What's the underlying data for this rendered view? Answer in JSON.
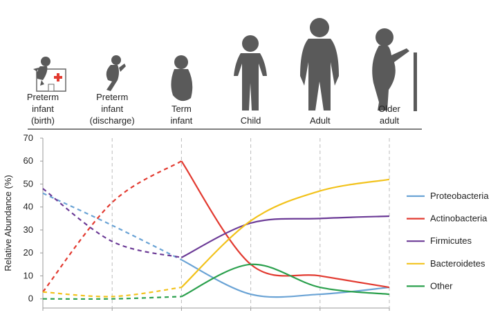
{
  "chart_data": {
    "type": "line",
    "categories": [
      [
        "Preterm",
        "infant",
        "(birth)"
      ],
      [
        "Preterm",
        "infant",
        "(discharge)"
      ],
      [
        "Term",
        "infant"
      ],
      [
        "Child"
      ],
      [
        "Adult"
      ],
      [
        "Older",
        "adult"
      ]
    ],
    "y_label": "Relative Abundance (%)",
    "ylim": [
      -4,
      70
    ],
    "yticks": [
      0,
      10,
      20,
      30,
      40,
      50,
      60,
      70
    ],
    "dashed_until": 2,
    "legend": "right",
    "series": [
      {
        "name": "Proteobacteria",
        "color": "#6aa3d5",
        "values": [
          46,
          32,
          17,
          2,
          2,
          5
        ]
      },
      {
        "name": "Actinobacteria",
        "color": "#e23a30",
        "values": [
          3,
          42,
          60,
          15,
          10,
          5
        ]
      },
      {
        "name": "Firmicutes",
        "color": "#6b3a96",
        "values": [
          48,
          25,
          18,
          33,
          35,
          36
        ]
      },
      {
        "name": "Bacteroidetes",
        "color": "#f2c21b",
        "values": [
          3,
          1,
          5,
          34,
          47,
          52
        ]
      },
      {
        "name": "Other",
        "color": "#2ba04d",
        "values": [
          0,
          0,
          1,
          15,
          5,
          2
        ]
      }
    ]
  }
}
